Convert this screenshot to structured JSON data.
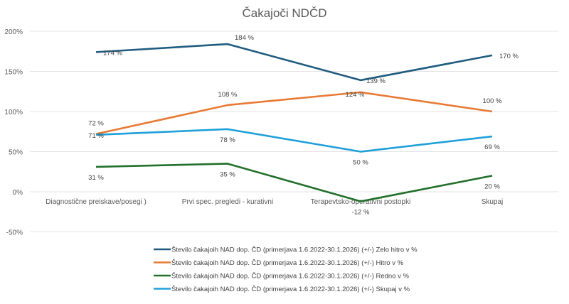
{
  "chart_data": {
    "type": "line",
    "title": "Čakajoči NDČD",
    "categories": [
      "Diagnostične preiskave/posegi )",
      "Prvi  spec. pregledi - kurativni",
      "Terapevtsko-operativni postopki",
      "Skupaj"
    ],
    "ylim": [
      -50,
      200
    ],
    "yticks": [
      200,
      150,
      100,
      50,
      0,
      -50
    ],
    "ytick_labels": [
      "200%",
      "150%",
      "100%",
      "50%",
      "0%",
      "-50%"
    ],
    "grid": true,
    "legend_position": "bottom",
    "series": [
      {
        "name": "Število čakajoih NAD dop. ČD (primerjava 1.6.2022-30.1.2026) (+/-) Zelo hitro v %",
        "color": "#1f5c7f",
        "values": [
          174,
          184,
          139,
          170
        ],
        "labels": [
          "174 %",
          "184 %",
          "139 %",
          "170 %"
        ]
      },
      {
        "name": "Število čakajoih NAD dop. ČD (primerjava 1.6.2022-30.1.2026) (+/-) Hitro  v %",
        "color": "#e97a35",
        "values": [
          72,
          108,
          124,
          100
        ],
        "labels": [
          "72 %",
          "108 %",
          "124 %",
          "100 %"
        ]
      },
      {
        "name": "Število čakajoih NAD dop. ČD (primerjava 1.6.2022-30.1.2026) (+/-) Redno v %",
        "color": "#22702b",
        "values": [
          31,
          35,
          -12,
          20
        ],
        "labels": [
          "31 %",
          "35 %",
          "-12 %",
          "20 %"
        ]
      },
      {
        "name": "Število čakajoih NAD dop. ČD (primerjava 1.6.2022-30.1.2026) (+/-) Skupaj v %",
        "color": "#1fa0d8",
        "values": [
          71,
          78,
          50,
          69
        ],
        "labels": [
          "71 %",
          "78 %",
          "50 %",
          "69 %"
        ]
      }
    ]
  }
}
